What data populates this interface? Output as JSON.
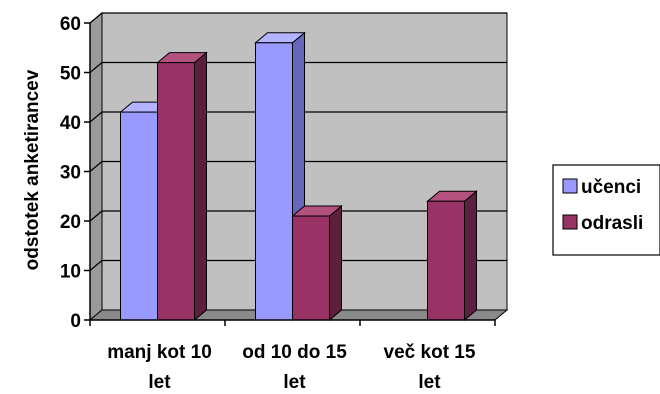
{
  "chart_data": {
    "type": "bar",
    "variant": "3d-clustered",
    "categories": [
      [
        "manj kot 10",
        "let"
      ],
      [
        "od 10 do 15",
        "let"
      ],
      [
        "več kot 15",
        "let"
      ]
    ],
    "series": [
      {
        "name": "učenci",
        "values": [
          42,
          56,
          0
        ]
      },
      {
        "name": "odrasli",
        "values": [
          52,
          21,
          24
        ]
      }
    ],
    "ylabel": "odstotek anketirancev",
    "ylim": [
      0,
      60
    ],
    "yticks": [
      0,
      10,
      20,
      30,
      40,
      50,
      60
    ],
    "grid": true,
    "legend": "right"
  },
  "colors": {
    "plot_back": "#c0c0c0",
    "plot_side": "#9a9a9a",
    "floor": "#8a8a8a",
    "series": [
      {
        "front": "#9999ff",
        "top": "#b3b3ff",
        "side": "#6666bb"
      },
      {
        "front": "#993366",
        "top": "#b3527f",
        "side": "#5c1f3d"
      }
    ]
  }
}
